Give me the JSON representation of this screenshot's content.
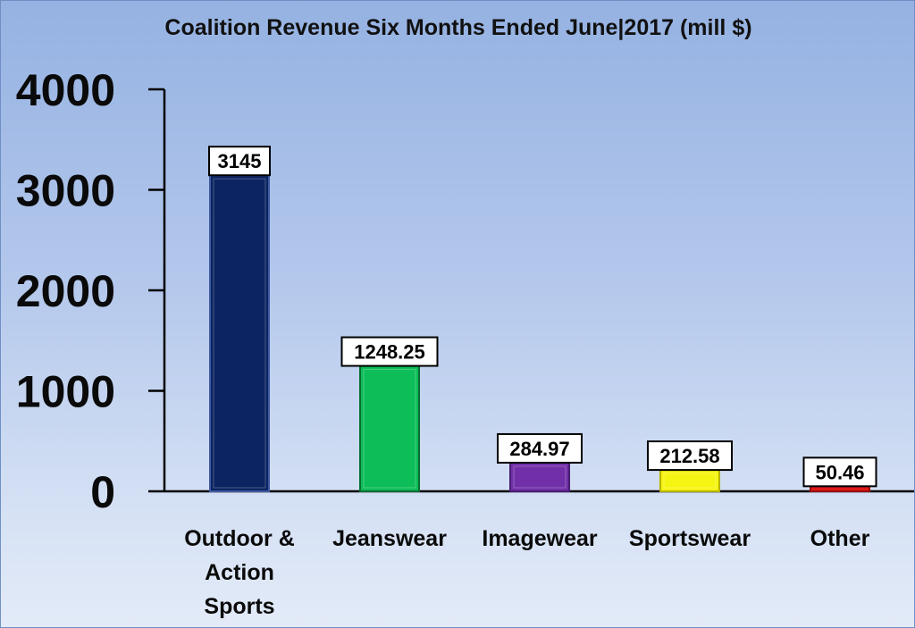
{
  "chart_data": {
    "type": "bar",
    "title": "Coalition Revenue Six Months Ended June|2017 (mill $)",
    "xlabel": "",
    "ylabel": "",
    "ylim": [
      0,
      4000
    ],
    "yticks": [
      "0",
      "1000",
      "2000",
      "3000",
      "4000"
    ],
    "grid": false,
    "legend": "none",
    "categories": [
      [
        "Outdoor &",
        "Action",
        "Sports"
      ],
      [
        "Jeanswear"
      ],
      [
        "Imagewear"
      ],
      [
        "Sportswear"
      ],
      [
        "Other"
      ]
    ],
    "values": [
      3145,
      1248.25,
      284.97,
      212.58,
      50.46
    ],
    "data_labels": [
      "3145",
      "1248.25",
      "284.97",
      "212.58",
      "50.46"
    ],
    "colors": [
      "#0c2461",
      "#0dbd58",
      "#7130a8",
      "#f6f412",
      "#e01818"
    ],
    "edge_colors": [
      "#3f5aa0",
      "#066e31",
      "#4a1c75",
      "#b7b300",
      "#9a0c0c"
    ]
  }
}
